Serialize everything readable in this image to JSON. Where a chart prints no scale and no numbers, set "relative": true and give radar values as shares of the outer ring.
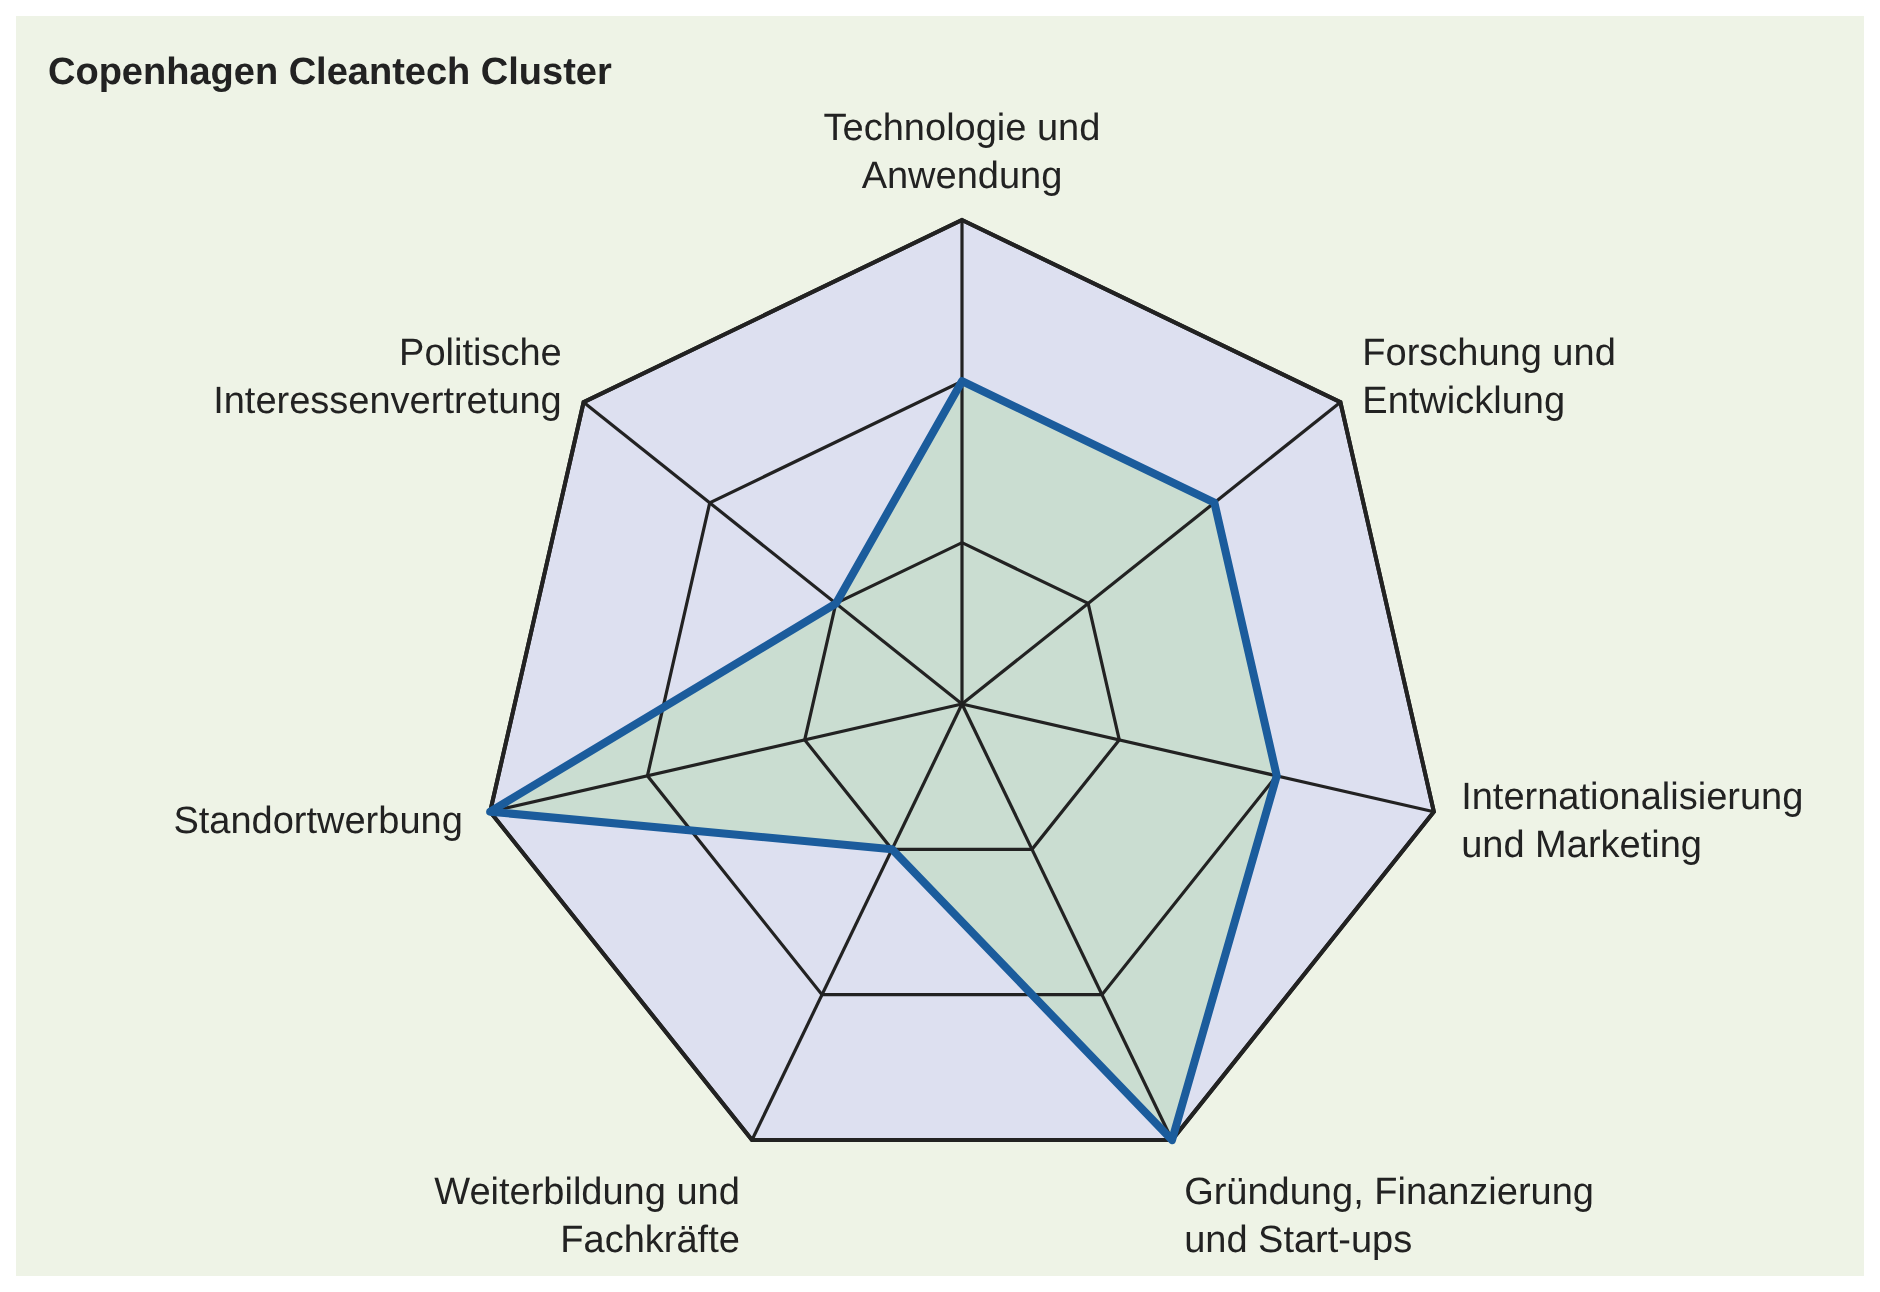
{
  "chart_data": {
    "type": "radar",
    "title": "Copenhagen Cleantech Cluster",
    "relative": true,
    "grid": true,
    "categories": [
      "Technologie und Anwendung",
      "Forschung und Entwicklung",
      "Internationalisierung und Marketing",
      "Gründung, Finanzierung und Start-ups",
      "Weiterbildung und Fachkräfte",
      "Standortwerbung",
      "Politische Interessenvertretung"
    ],
    "series": [
      {
        "color": "#1b5c9c",
        "values": [
          0.667,
          0.667,
          0.667,
          1,
          0.333,
          1,
          0.333
        ]
      }
    ]
  }
}
